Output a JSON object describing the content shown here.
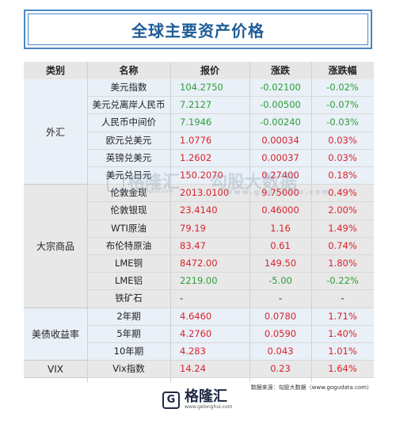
{
  "title": "全球主要资产价格",
  "headers": {
    "category": "类别",
    "name": "名称",
    "price": "报价",
    "change": "涨跌",
    "pct": "涨跌幅"
  },
  "groups": [
    {
      "label": "外汇",
      "rows": 6
    },
    {
      "label": "大宗商品",
      "rows": 7
    },
    {
      "label": "美债收益率",
      "rows": 3
    },
    {
      "label": "VIX",
      "rows": 1
    }
  ],
  "rows": [
    {
      "name": "美元指数",
      "price": "104.2750",
      "change": "-0.02100",
      "pct": "-0.02%",
      "color": "green"
    },
    {
      "name": "美元兑离岸人民币",
      "price": "7.2127",
      "change": "-0.00500",
      "pct": "-0.07%",
      "color": "green"
    },
    {
      "name": "人民币中间价",
      "price": "7.1946",
      "change": "-0.00240",
      "pct": "-0.03%",
      "color": "green"
    },
    {
      "name": "欧元兑美元",
      "price": "1.0776",
      "change": "0.00034",
      "pct": "0.03%",
      "color": "red"
    },
    {
      "name": "英镑兑美元",
      "price": "1.2602",
      "change": "0.00037",
      "pct": "0.03%",
      "color": "red"
    },
    {
      "name": "美元兑日元",
      "price": "150.2070",
      "change": "0.27400",
      "pct": "0.18%",
      "color": "red"
    },
    {
      "name": "伦敦金现",
      "price": "2013.0100",
      "change": "9.75000",
      "pct": "0.49%",
      "color": "red"
    },
    {
      "name": "伦敦银现",
      "price": "23.4140",
      "change": "0.46000",
      "pct": "2.00%",
      "color": "red"
    },
    {
      "name": "WTI原油",
      "price": "79.19",
      "change": "1.16",
      "pct": "1.49%",
      "color": "red"
    },
    {
      "name": "布伦特原油",
      "price": "83.47",
      "change": "0.61",
      "pct": "0.74%",
      "color": "red"
    },
    {
      "name": "LME铜",
      "price": "8472.00",
      "change": "149.50",
      "pct": "1.80%",
      "color": "red"
    },
    {
      "name": "LME铝",
      "price": "2219.00",
      "change": "-5.00",
      "pct": "-0.22%",
      "color": "green"
    },
    {
      "name": "铁矿石",
      "price": "-",
      "change": "-",
      "pct": "-",
      "color": "dark"
    },
    {
      "name": "2年期",
      "price": "4.6460",
      "change": "0.0780",
      "pct": "1.71%",
      "color": "red"
    },
    {
      "name": "5年期",
      "price": "4.2760",
      "change": "0.0590",
      "pct": "1.40%",
      "color": "red"
    },
    {
      "name": "10年期",
      "price": "4.283",
      "change": "0.043",
      "pct": "1.01%",
      "color": "red"
    },
    {
      "name": "Vix指数",
      "price": "14.24",
      "change": "0.23",
      "pct": "1.64%",
      "color": "red"
    }
  ],
  "source": "数据来源：勾股大数据（www.gogudata.com）",
  "logo": {
    "name": "格隆汇",
    "mark": "G",
    "site": "www.gelonghui.com"
  },
  "watermark": {
    "brand": "格隆汇",
    "site": "www.gelonghui.com",
    "text": "勾股大数据",
    "url": "www.gogudata.com"
  },
  "colors": {
    "red": "#d9232d",
    "green": "#2f9e3a",
    "header_bg": "#e6e6e6",
    "band_blue": "#e9f0f7",
    "band_gray": "#e8e8e8",
    "title": "#1f5d97"
  }
}
